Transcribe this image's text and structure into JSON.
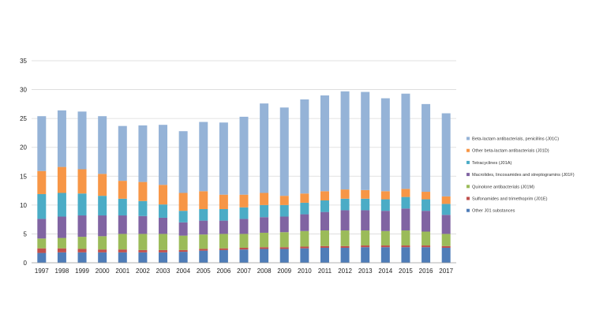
{
  "chart_data": {
    "type": "bar",
    "stacked": true,
    "categories": [
      "1997",
      "1998",
      "1999",
      "2000",
      "2001",
      "2002",
      "2003",
      "2004",
      "2005",
      "2006",
      "2007",
      "2008",
      "2009",
      "2010",
      "2011",
      "2012",
      "2013",
      "2014",
      "2015",
      "2016",
      "2017"
    ],
    "ylim": [
      0,
      35
    ],
    "yticks": [
      0,
      5,
      10,
      15,
      20,
      25,
      30,
      35
    ],
    "grid": true,
    "legend_position": "right",
    "series": [
      {
        "name": "Other J01 substances",
        "color": "#4F7DB8",
        "values": [
          1.7,
          1.8,
          1.8,
          1.8,
          1.8,
          1.8,
          1.8,
          1.9,
          2.1,
          2.2,
          2.3,
          2.4,
          2.4,
          2.5,
          2.6,
          2.6,
          2.7,
          2.7,
          2.7,
          2.7,
          2.6
        ]
      },
      {
        "name": "Sulfonamides and trimethoprim (J01E)",
        "color": "#C0504D",
        "values": [
          0.8,
          0.7,
          0.6,
          0.5,
          0.5,
          0.4,
          0.4,
          0.3,
          0.3,
          0.3,
          0.3,
          0.3,
          0.3,
          0.3,
          0.3,
          0.3,
          0.3,
          0.3,
          0.3,
          0.3,
          0.3
        ]
      },
      {
        "name": "Quinolone antibacterials (J01M)",
        "color": "#9BBB59",
        "values": [
          1.7,
          1.8,
          2.1,
          2.3,
          2.7,
          2.8,
          2.8,
          2.5,
          2.5,
          2.5,
          2.4,
          2.5,
          2.6,
          2.7,
          2.7,
          2.7,
          2.6,
          2.5,
          2.6,
          2.4,
          2.1
        ]
      },
      {
        "name": "Macrolides, lincosamides and streptogramins (J01F)",
        "color": "#8064A2",
        "values": [
          3.4,
          3.7,
          3.7,
          3.6,
          3.2,
          3.1,
          2.8,
          2.3,
          2.4,
          2.3,
          2.6,
          2.7,
          2.7,
          2.9,
          3.2,
          3.5,
          3.5,
          3.5,
          3.8,
          3.6,
          3.3
        ]
      },
      {
        "name": "Tetracyclines (J01A)",
        "color": "#4BACC6",
        "values": [
          4.3,
          4.1,
          3.8,
          3.4,
          2.9,
          2.6,
          2.3,
          2.0,
          2.0,
          2.0,
          2.0,
          2.1,
          2.0,
          2.0,
          2.0,
          2.0,
          2.0,
          2.0,
          2.0,
          2.0,
          1.9
        ]
      },
      {
        "name": "Other beta-lactam antibacterials (J01D)",
        "color": "#F79646",
        "values": [
          4.0,
          4.5,
          4.2,
          3.8,
          3.1,
          3.3,
          3.4,
          3.1,
          3.1,
          2.5,
          2.2,
          2.1,
          1.6,
          1.6,
          1.6,
          1.6,
          1.5,
          1.4,
          1.4,
          1.3,
          1.3
        ]
      },
      {
        "name": "Beta-lactam antibacterials, penicillins (J01C)",
        "color": "#95B3D7",
        "values": [
          9.5,
          9.8,
          10.0,
          10.0,
          9.5,
          9.8,
          10.4,
          10.7,
          12.0,
          12.5,
          13.5,
          15.5,
          15.3,
          16.3,
          16.6,
          17.0,
          17.0,
          16.1,
          16.5,
          15.2,
          14.4
        ]
      }
    ]
  }
}
